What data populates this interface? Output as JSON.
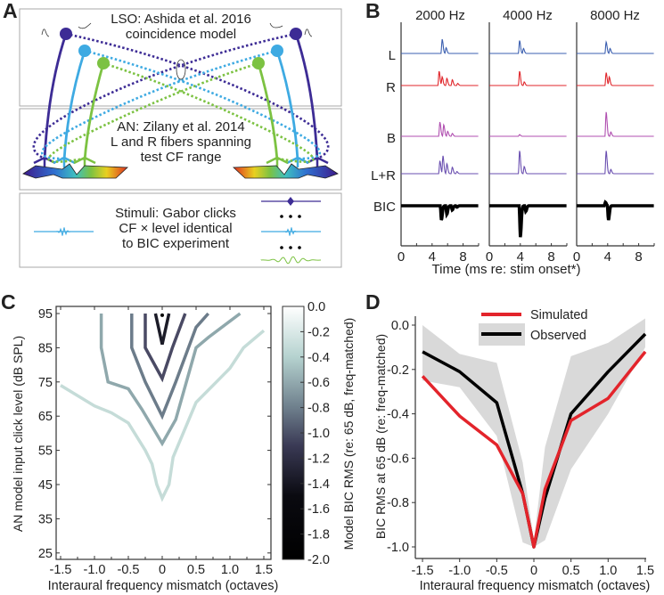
{
  "panel_labels": {
    "a": "A",
    "b": "B",
    "c": "C",
    "d": "D"
  },
  "panel_a": {
    "lso_line1": "LSO:  Ashida et al. 2016",
    "lso_line2": "coincidence model",
    "an_line1": "AN: Zilany et al. 2014",
    "an_line2": "L and R fibers spanning",
    "an_line3": "test CF range",
    "stim_line1": "Stimuli: Gabor clicks",
    "stim_line2": "CF × level identical",
    "stim_line3": "to BIC experiment",
    "colors": {
      "purple": "#3d2c95",
      "cyan": "#3eaae2",
      "green": "#7cc242"
    }
  },
  "chart_data": [
    {
      "type": "line",
      "panel": "B",
      "columns": [
        "2000 Hz",
        "4000 Hz",
        "8000 Hz"
      ],
      "rows": [
        "L",
        "R",
        "B",
        "L+R",
        "BIC"
      ],
      "row_colors": {
        "L": "#3b5fb0",
        "R": "#e0262b",
        "B": "#b04fb0",
        "L+R": "#6a4fb0",
        "BIC": "#000000"
      },
      "xlabel": "Time (ms re: stim onset*)",
      "xticks": [
        0,
        4,
        8
      ],
      "xlim": [
        0,
        10
      ],
      "peaks": {
        "2000 Hz": {
          "L": [
            [
              5.3,
              1.0
            ],
            [
              5.8,
              0.4
            ]
          ],
          "R": [
            [
              4.9,
              1.0
            ],
            [
              5.3,
              0.6
            ],
            [
              5.9,
              0.5
            ],
            [
              6.6,
              0.4
            ],
            [
              7.3,
              0.15
            ]
          ],
          "B": [
            [
              5.0,
              1.0
            ],
            [
              5.5,
              0.8
            ],
            [
              6.0,
              0.35
            ],
            [
              6.6,
              0.2
            ]
          ],
          "L+R": [
            [
              5.0,
              0.9
            ],
            [
              5.4,
              1.25
            ],
            [
              5.9,
              0.7
            ],
            [
              6.6,
              0.45
            ],
            [
              7.2,
              0.15
            ]
          ],
          "BIC": [
            [
              5.2,
              -1.0
            ],
            [
              5.9,
              -0.6
            ],
            [
              6.6,
              -0.3
            ],
            [
              7.2,
              -0.1
            ]
          ]
        },
        "4000 Hz": {
          "L": [
            [
              3.9,
              0.9
            ],
            [
              4.4,
              0.35
            ]
          ],
          "R": [
            [
              3.9,
              1.0
            ],
            [
              4.5,
              0.25
            ]
          ],
          "B": [
            [
              3.9,
              0.12
            ]
          ],
          "L+R": [
            [
              3.9,
              1.6
            ],
            [
              4.5,
              0.5
            ]
          ],
          "BIC": [
            [
              4.0,
              -2.2
            ],
            [
              4.7,
              -0.4
            ]
          ]
        },
        "8000 Hz": {
          "L": [
            [
              3.8,
              0.8
            ],
            [
              4.3,
              0.35
            ]
          ],
          "R": [
            [
              3.8,
              0.9
            ],
            [
              4.2,
              0.6
            ]
          ],
          "B": [
            [
              3.8,
              1.7
            ],
            [
              4.4,
              0.3
            ]
          ],
          "L+R": [
            [
              3.8,
              1.6
            ],
            [
              4.4,
              0.3
            ]
          ],
          "BIC": [
            [
              3.7,
              0.25
            ],
            [
              4.1,
              -1.0
            ]
          ]
        }
      }
    },
    {
      "type": "contour",
      "panel": "C",
      "xlabel": "Interaural frequency mismatch (octaves)",
      "ylabel": "AN model input click level (dB SPL)",
      "xlim": [
        -1.6,
        1.6
      ],
      "ylim": [
        23,
        97
      ],
      "xticks": [
        "-1.5",
        "-1.0",
        "-0.5",
        "0",
        "0.5",
        "1.0",
        "1.5"
      ],
      "yticks": [
        "25",
        "35",
        "45",
        "55",
        "65",
        "75",
        "85",
        "95"
      ],
      "contours": [
        {
          "level": -0.2,
          "color": "#c5dcd8",
          "points": [
            [
              -1.5,
              74
            ],
            [
              -1.0,
              68
            ],
            [
              -0.75,
              66
            ],
            [
              -0.5,
              63
            ],
            [
              -0.25,
              55
            ],
            [
              -0.15,
              51
            ],
            [
              -0.08,
              45
            ],
            [
              0,
              41
            ],
            [
              0.1,
              45
            ],
            [
              0.16,
              53
            ],
            [
              0.5,
              69
            ],
            [
              0.8,
              75
            ],
            [
              1.0,
              79
            ],
            [
              1.2,
              85
            ],
            [
              1.5,
              90
            ]
          ]
        },
        {
          "level": -0.4,
          "color": "#8fa8ac",
          "points": [
            [
              -0.9,
              95
            ],
            [
              -0.9,
              85
            ],
            [
              -0.8,
              75
            ],
            [
              -0.5,
              73
            ],
            [
              -0.3,
              67
            ],
            [
              0,
              57
            ],
            [
              0.2,
              64
            ],
            [
              0.5,
              85
            ],
            [
              0.68,
              88
            ],
            [
              1.15,
              95
            ]
          ]
        },
        {
          "level": -0.6,
          "color": "#6c7c8a",
          "points": [
            [
              -0.45,
              95
            ],
            [
              -0.45,
              85
            ],
            [
              -0.25,
              75
            ],
            [
              0,
              65
            ],
            [
              0.2,
              75
            ],
            [
              0.5,
              91
            ],
            [
              0.68,
              95
            ]
          ]
        },
        {
          "level": -0.8,
          "color": "#4a4a64",
          "points": [
            [
              -0.25,
              95
            ],
            [
              -0.25,
              85
            ],
            [
              0,
              76
            ],
            [
              0.15,
              85
            ],
            [
              0.34,
              95
            ]
          ]
        },
        {
          "level": -1.0,
          "color": "#1c1c28",
          "points": [
            [
              -0.1,
              95
            ],
            [
              0,
              86
            ],
            [
              0.1,
              95
            ]
          ]
        }
      ],
      "peak_point": [
        0,
        94.5
      ],
      "colorbar": {
        "label": "Model BIC RMS (re: 65 dB, freq-matched)",
        "range": [
          -2.0,
          0.0
        ],
        "ticks": [
          "0.0",
          "-0.2",
          "-0.4",
          "-0.6",
          "-0.8",
          "-1.0",
          "-1.2",
          "-1.4",
          "-1.6",
          "-1.8",
          "-2.0"
        ]
      }
    },
    {
      "type": "line",
      "panel": "D",
      "xlabel": "Interaural frequency mismatch (octaves)",
      "ylabel": "BIC RMS at 65 dB (re: freq-matched)",
      "xlim": [
        -1.6,
        1.6
      ],
      "ylim": [
        -1.05,
        0.05
      ],
      "xticks": [
        "-1.5",
        "-1.0",
        "-0.5",
        "0",
        "0.5",
        "1.0",
        "1.5"
      ],
      "yticks": [
        "0.0",
        "-0.2",
        "-0.4",
        "-0.6",
        "-0.8",
        "-1.0"
      ],
      "legend": {
        "placement": "top-center",
        "entries": [
          "Simulated",
          "Observed"
        ]
      },
      "series": [
        {
          "name": "Simulated",
          "color": "#e3242b",
          "x": [
            -1.5,
            -1.0,
            -0.5,
            -0.15,
            0,
            0.15,
            0.5,
            1.0,
            1.5
          ],
          "y": [
            -0.23,
            -0.41,
            -0.54,
            -0.76,
            -1.0,
            -0.74,
            -0.43,
            -0.33,
            -0.12
          ]
        },
        {
          "name": "Observed",
          "color": "#000000",
          "x": [
            -1.5,
            -1.0,
            -0.5,
            -0.15,
            0,
            0.15,
            0.5,
            1.0,
            1.5
          ],
          "y": [
            -0.12,
            -0.21,
            -0.35,
            -0.76,
            -1.0,
            -0.78,
            -0.4,
            -0.21,
            -0.04
          ]
        }
      ],
      "observed_band": {
        "x": [
          -1.5,
          -1.0,
          -0.5,
          -0.15,
          0,
          0.15,
          0.5,
          1.0,
          1.5
        ],
        "upper": [
          0.0,
          -0.13,
          -0.17,
          -0.62,
          -0.97,
          -0.55,
          -0.14,
          -0.08,
          0.03
        ],
        "lower": [
          -0.25,
          -0.28,
          -0.5,
          -0.98,
          -1.0,
          -0.97,
          -0.65,
          -0.4,
          -0.1
        ],
        "color": "#d9d9d9"
      }
    }
  ]
}
